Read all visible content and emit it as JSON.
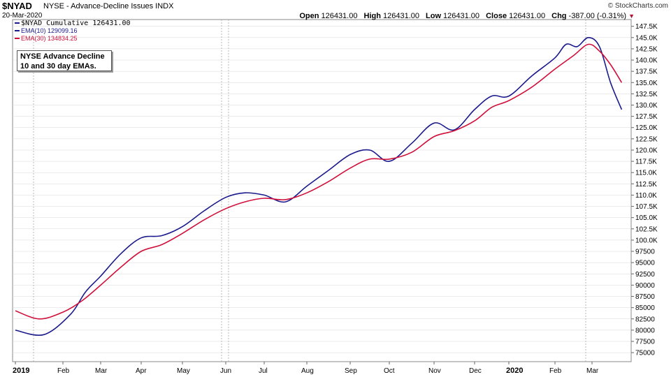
{
  "header": {
    "ticker": "$NYAD",
    "name": "NYSE - Advance-Decline Issues INDX",
    "date": "20-Mar-2020",
    "brand": "© StockCharts.com",
    "quote": {
      "open_label": "Open",
      "open": "126431.00",
      "high_label": "High",
      "high": "126431.00",
      "low_label": "Low",
      "low": "126431.00",
      "close_label": "Close",
      "close": "126431.00",
      "chg_label": "Chg",
      "chg": "-387.00 (-0.31%)"
    }
  },
  "note": {
    "line1": "NYSE Advance Decline",
    "line2": "10 and 30 day EMAs."
  },
  "colors": {
    "ema10": "#1a1a8c",
    "ema30": "#d0103a",
    "grid": "#d8d8d8",
    "down_arrow": "#b01030"
  },
  "chart_data": {
    "type": "line",
    "x_axis": {
      "labels": [
        "2019",
        "Feb",
        "Mar",
        "Apr",
        "May",
        "Jun",
        "Jul",
        "Aug",
        "Sep",
        "Oct",
        "Nov",
        "Dec",
        "2020",
        "Feb",
        "Mar"
      ]
    },
    "y_axis": {
      "min": 73000,
      "max": 149000,
      "ticks": [
        75000,
        77500,
        80000,
        82500,
        85000,
        87500,
        90000,
        92500,
        95000,
        97500,
        100000,
        102500,
        105000,
        107500,
        110000,
        112500,
        115000,
        117500,
        120000,
        122500,
        125000,
        127500,
        130000,
        132500,
        135000,
        137500,
        140000,
        142500,
        145000,
        147500
      ],
      "tick_labels": [
        "75000",
        "77500",
        "80000",
        "82500",
        "85000",
        "87500",
        "90000",
        "92500",
        "95000",
        "97500",
        "100.0K",
        "102.5K",
        "105.0K",
        "107.5K",
        "110.0K",
        "112.5K",
        "115.0K",
        "117.5K",
        "120.0K",
        "122.5K",
        "125.0K",
        "127.5K",
        "130.0K",
        "132.5K",
        "135.0K",
        "137.5K",
        "140.0K",
        "142.5K",
        "145.0K",
        "147.5K"
      ]
    },
    "series": [
      {
        "name": "$NYAD Cumulative 126431.00",
        "values": []
      },
      {
        "name": "EMA(10) 129099.16",
        "x": [
          0,
          0.6,
          1.2,
          1.6,
          2,
          2.5,
          3,
          3.5,
          4,
          4.5,
          5,
          5.5,
          6,
          6.5,
          7,
          7.5,
          8,
          8.5,
          9,
          9.5,
          10,
          10.5,
          11,
          11.5,
          12,
          12.5,
          13,
          13.3,
          13.6,
          13.9,
          14.2,
          14.5,
          14.8
        ],
        "values": [
          80000,
          79000,
          83500,
          88500,
          92000,
          97000,
          100500,
          101000,
          103000,
          106500,
          109500,
          110500,
          110000,
          108500,
          112000,
          115500,
          119000,
          120000,
          117500,
          121500,
          126000,
          124500,
          129000,
          132000,
          132000,
          136500,
          140500,
          143500,
          143000,
          145000,
          143000,
          135000,
          129000
        ]
      },
      {
        "name": "EMA(30) 134834.25",
        "x": [
          0,
          0.5,
          1,
          1.5,
          2,
          2.5,
          3,
          3.5,
          4,
          4.5,
          5,
          5.5,
          6,
          6.5,
          7,
          7.5,
          8,
          8.5,
          9,
          9.5,
          10,
          10.5,
          11,
          11.5,
          12,
          12.5,
          13,
          13.5,
          13.9,
          14.2,
          14.5,
          14.8
        ],
        "values": [
          84300,
          82500,
          84000,
          86500,
          90000,
          94000,
          97500,
          99000,
          101500,
          104500,
          107000,
          108500,
          109300,
          109000,
          110500,
          113000,
          116000,
          118000,
          118000,
          119500,
          123000,
          124300,
          126500,
          129500,
          131000,
          134000,
          138000,
          141000,
          143500,
          142000,
          139000,
          135000
        ]
      }
    ]
  }
}
